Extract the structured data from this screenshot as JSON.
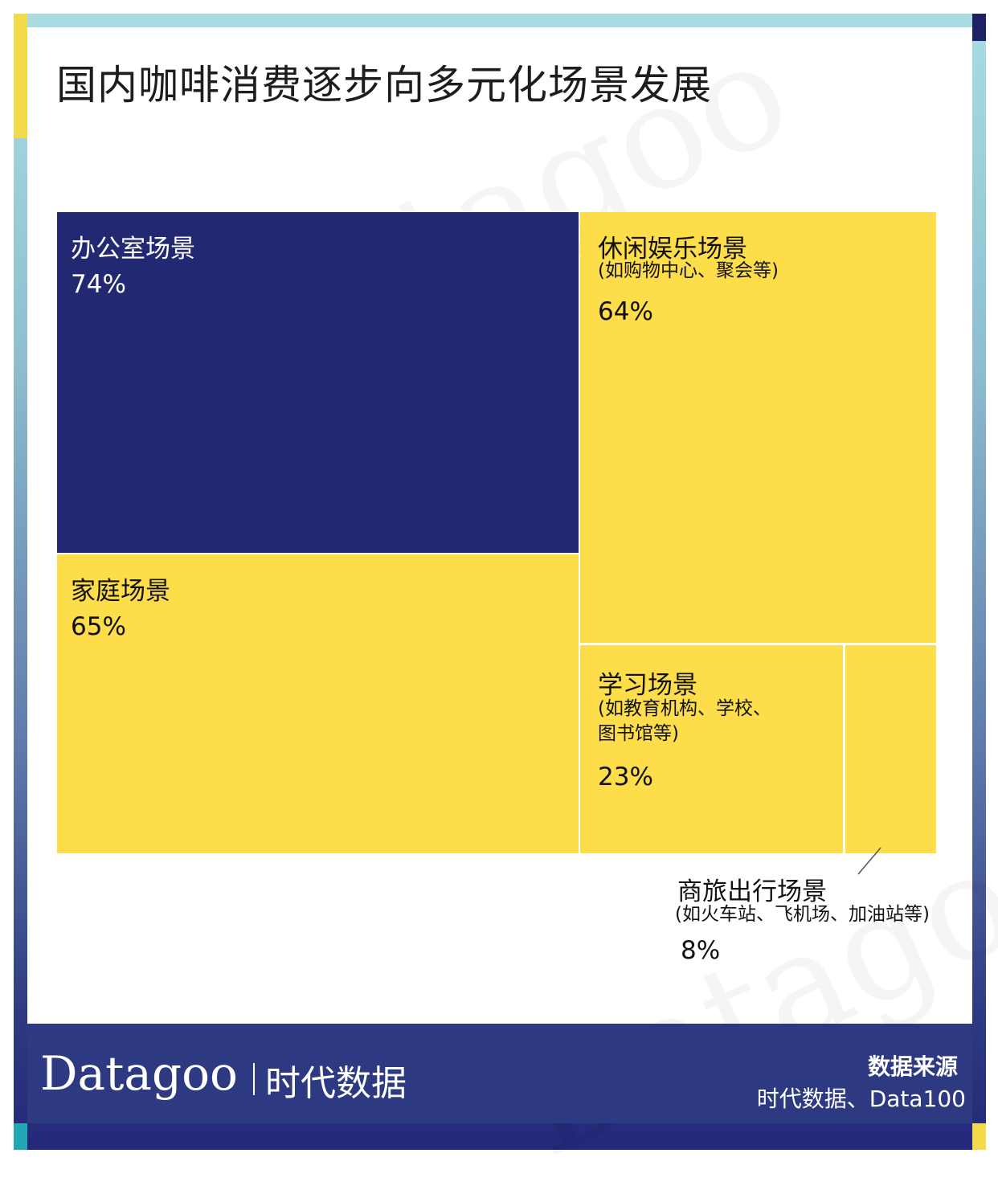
{
  "title": "国内咖啡消费逐步向多元化场景发展",
  "chart_data": {
    "type": "treemap",
    "title": "国内咖啡消费逐步向多元化场景发展",
    "items": [
      {
        "label": "办公室场景",
        "note": "",
        "value": 74,
        "value_text": "74%",
        "color": "#232873"
      },
      {
        "label": "家庭场景",
        "note": "",
        "value": 65,
        "value_text": "65%",
        "color": "#fddd4a"
      },
      {
        "label": "休闲娱乐场景",
        "note": "(如购物中心、聚会等)",
        "value": 64,
        "value_text": "64%",
        "color": "#fddd4a"
      },
      {
        "label": "学习场景",
        "note_lines": [
          "(如教育机构、学校、",
          "图书馆等)"
        ],
        "value": 23,
        "value_text": "23%",
        "color": "#fddd4a"
      },
      {
        "label": "商旅出行场景",
        "note": "(如火车站、飞机场、加油站等)",
        "value": 8,
        "value_text": "8%",
        "color": "#fddd4a"
      }
    ]
  },
  "footer": {
    "brand": "Datagoo",
    "brand_cn": "时代数据",
    "source_title": "数据来源",
    "source_text": "时代数据、Data100"
  }
}
